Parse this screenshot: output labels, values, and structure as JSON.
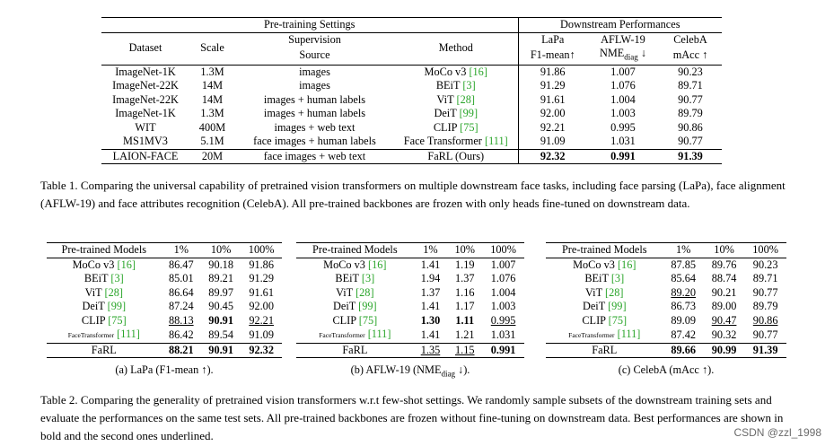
{
  "table1": {
    "group_headers": {
      "pretraining": "Pre-training Settings",
      "downstream": "Downstream Performances"
    },
    "headers": {
      "dataset": "Dataset",
      "scale": "Scale",
      "supervision_line1": "Supervision",
      "supervision_line2": "Source",
      "method": "Method",
      "lapa_line1": "LaPa",
      "lapa_line2": "F1-mean↑",
      "aflw_line1": "AFLW-19",
      "aflw_line2": "NME",
      "aflw_sub": "diag",
      "aflw_arrow": " ↓",
      "celeba_line1": "CelebA",
      "celeba_line2": "mAcc ↑"
    },
    "rows": [
      {
        "dataset": "ImageNet-1K",
        "scale": "1.3M",
        "source": "images",
        "method": "MoCo v3",
        "cite": "[16]",
        "lapa": "91.86",
        "aflw": "1.007",
        "celeba": "90.23"
      },
      {
        "dataset": "ImageNet-22K",
        "scale": "14M",
        "source": "images",
        "method": "BEiT",
        "cite": "[3]",
        "lapa": "91.29",
        "aflw": "1.076",
        "celeba": "89.71"
      },
      {
        "dataset": "ImageNet-22K",
        "scale": "14M",
        "source": "images + human labels",
        "method": "ViT",
        "cite": "[28]",
        "lapa": "91.61",
        "aflw": "1.004",
        "celeba": "90.77"
      },
      {
        "dataset": "ImageNet-1K",
        "scale": "1.3M",
        "source": "images + human labels",
        "method": "DeiT",
        "cite": "[99]",
        "lapa": "92.00",
        "aflw": "1.003",
        "celeba": "89.79"
      },
      {
        "dataset": "WIT",
        "scale": "400M",
        "source": "images + web text",
        "method": "CLIP",
        "cite": "[75]",
        "lapa": "92.21",
        "aflw": "0.995",
        "celeba": "90.86"
      },
      {
        "dataset": "MS1MV3",
        "scale": "5.1M",
        "source": "face images + human labels",
        "method": "Face Transformer",
        "cite": "[111]",
        "lapa": "91.09",
        "aflw": "1.031",
        "celeba": "90.77"
      }
    ],
    "final_row": {
      "dataset": "LAION-FACE",
      "scale": "20M",
      "source": "face images + web text",
      "method": "FaRL (Ours)",
      "lapa": "92.32",
      "aflw": "0.991",
      "celeba": "91.39"
    }
  },
  "caption1": "Table 1. Comparing the universal capability of pretrained vision transformers on multiple downstream face tasks, including face parsing (LaPa), face alignment (AFLW-19) and face attributes recognition (CelebA). All pre-trained backbones are frozen with only heads fine-tuned on downstream data.",
  "table2": {
    "col_model": "Pre-trained Models",
    "col_1": "1%",
    "col_10": "10%",
    "col_100": "100%",
    "models": [
      {
        "name": "MoCo v3",
        "cite": "[16]"
      },
      {
        "name": "BEiT",
        "cite": "[3]"
      },
      {
        "name": "ViT",
        "cite": "[28]"
      },
      {
        "name": "DeiT",
        "cite": "[99]"
      },
      {
        "name": "CLIP",
        "cite": "[75]"
      },
      {
        "name": "FaceTransformer",
        "cite": "[111]"
      }
    ],
    "final_model": "FaRL",
    "lapa": {
      "rows": [
        [
          "86.47",
          "90.18",
          "91.86"
        ],
        [
          "85.01",
          "89.21",
          "91.29"
        ],
        [
          "86.64",
          "89.97",
          "91.61"
        ],
        [
          "87.24",
          "90.45",
          "92.00"
        ],
        [
          "88.13",
          "90.91",
          "92.21"
        ],
        [
          "86.42",
          "89.54",
          "91.09"
        ]
      ],
      "final": [
        "88.21",
        "90.91",
        "92.32"
      ],
      "caption": "(a) LaPa (F1-mean ↑)."
    },
    "aflw": {
      "rows": [
        [
          "1.41",
          "1.19",
          "1.007"
        ],
        [
          "1.94",
          "1.37",
          "1.076"
        ],
        [
          "1.37",
          "1.16",
          "1.004"
        ],
        [
          "1.41",
          "1.17",
          "1.003"
        ],
        [
          "1.30",
          "1.11",
          "0.995"
        ],
        [
          "1.41",
          "1.21",
          "1.031"
        ]
      ],
      "final": [
        "1.35",
        "1.15",
        "0.991"
      ],
      "caption_pre": "(b) AFLW-19 (NME",
      "caption_sub": "diag",
      "caption_post": " ↓)."
    },
    "celeba": {
      "rows": [
        [
          "87.85",
          "89.76",
          "90.23"
        ],
        [
          "85.64",
          "88.74",
          "89.71"
        ],
        [
          "89.20",
          "90.21",
          "90.77"
        ],
        [
          "86.73",
          "89.00",
          "89.79"
        ],
        [
          "89.09",
          "90.47",
          "90.86"
        ],
        [
          "87.42",
          "90.32",
          "90.77"
        ]
      ],
      "final": [
        "89.66",
        "90.99",
        "91.39"
      ],
      "caption": "(c) CelebA (mAcc ↑)."
    }
  },
  "caption2": "Table 2. Comparing the generality of pretrained vision transformers w.r.t few-shot settings. We randomly sample subsets of the downstream training sets and evaluate the performances on the same test sets. All pre-trained backbones are frozen without fine-tuning on downstream data. Best performances are shown in bold and the second ones underlined.",
  "watermark": "CSDN @zzl_1998",
  "colors": {
    "citation": "#2aa52a",
    "watermark": "#6a6a6a"
  }
}
